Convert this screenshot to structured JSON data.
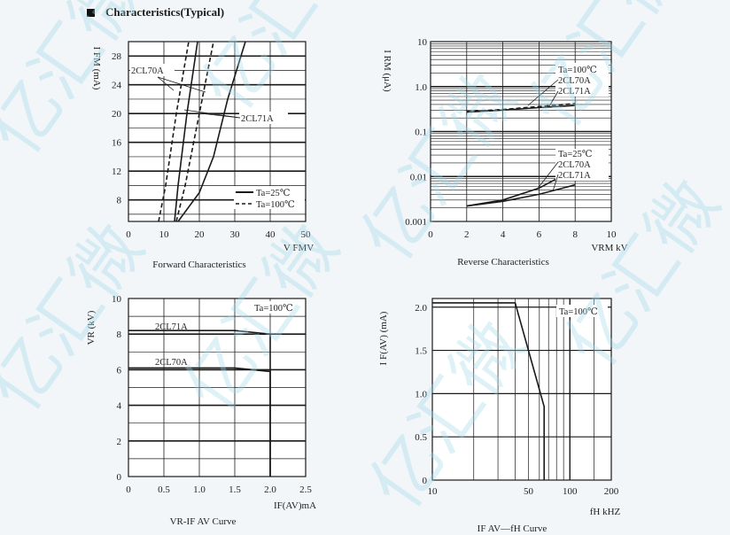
{
  "page": {
    "title": "Characteristics(Typical)"
  },
  "watermark": "亿汇微",
  "colors": {
    "grid": "#1a1a1a",
    "curve": "#1a1a1a",
    "watermark": "#9fd8ea"
  },
  "chart_data": [
    {
      "id": "forward",
      "type": "line",
      "caption": "Forward Characteristics",
      "xlabel": "V FMV",
      "ylabel": "I FM (mA)",
      "xlim": [
        0,
        50
      ],
      "ylim": [
        5,
        30
      ],
      "xticks": [
        0,
        10,
        20,
        30,
        40,
        50
      ],
      "yticks": [
        8,
        12,
        16,
        20,
        24,
        28
      ],
      "legend": {
        "solid": "Ta=25℃",
        "dashed": "Ta=100℃",
        "position": "lower-right"
      },
      "annotations": [
        "2CL70A",
        "2CL71A"
      ],
      "series": [
        {
          "style": "dashed",
          "x": [
            8.5,
            10.5,
            13.5,
            17
          ],
          "y": [
            5,
            10,
            20,
            30
          ]
        },
        {
          "style": "solid",
          "x": [
            13,
            14,
            16.5,
            19.5
          ],
          "y": [
            5,
            10,
            20,
            30
          ]
        },
        {
          "style": "dashed",
          "x": [
            13.5,
            16,
            20,
            24
          ],
          "y": [
            5,
            10,
            20,
            30
          ]
        },
        {
          "style": "solid",
          "x": [
            14,
            20,
            24,
            28,
            33
          ],
          "y": [
            5,
            9,
            14,
            22,
            30
          ]
        }
      ]
    },
    {
      "id": "reverse",
      "type": "line",
      "caption": "Reverse Characteristics",
      "xlabel": "VRM kV",
      "ylabel": "I RM (μA)",
      "xlim": [
        0,
        10
      ],
      "ylim": [
        0.001,
        10
      ],
      "yscale": "log",
      "xticks": [
        0,
        2,
        4,
        6,
        8,
        10
      ],
      "yticks": [
        "0.001",
        "0.01",
        "0.1",
        "1.0",
        "10"
      ],
      "annotations": [
        "Ta=100℃",
        "2CL70A",
        "2CL71A",
        "Ta=25℃",
        "2CL70A",
        "2CL71A"
      ],
      "series": [
        {
          "style": "dashed",
          "x": [
            2,
            4,
            6,
            8
          ],
          "y": [
            0.28,
            0.31,
            0.36,
            0.42
          ]
        },
        {
          "style": "solid",
          "x": [
            2,
            4,
            6,
            8
          ],
          "y": [
            0.27,
            0.3,
            0.34,
            0.38
          ]
        },
        {
          "style": "solid",
          "x": [
            2,
            4,
            6,
            7,
            8
          ],
          "y": [
            0.0022,
            0.003,
            0.0055,
            0.009,
            0.014
          ]
        },
        {
          "style": "solid",
          "x": [
            2,
            4,
            6,
            8
          ],
          "y": [
            0.0022,
            0.0028,
            0.004,
            0.0065
          ]
        }
      ]
    },
    {
      "id": "vr-if",
      "type": "line",
      "caption": "VR-IF AV Curve",
      "xlabel": "IF(AV)mA",
      "ylabel": "VR (kV)",
      "xlim": [
        0,
        2.5
      ],
      "ylim": [
        0,
        10
      ],
      "xticks": [
        "0",
        "0.5",
        "1.0",
        "1.5",
        "2.0",
        "2.5"
      ],
      "yticks": [
        0,
        2,
        4,
        6,
        8,
        10
      ],
      "annotations": [
        "Ta=100℃",
        "2CL71A",
        "2CL70A"
      ],
      "series": [
        {
          "name": "2CL71A",
          "style": "solid",
          "x": [
            0,
            1.5,
            2.0,
            2.0
          ],
          "y": [
            8.2,
            8.2,
            8.0,
            0
          ]
        },
        {
          "name": "2CL70A",
          "style": "solid",
          "x": [
            0,
            1.5,
            2.0,
            2.0
          ],
          "y": [
            6.1,
            6.1,
            5.9,
            0
          ]
        }
      ]
    },
    {
      "id": "if-f",
      "type": "line",
      "caption": "IF AV—fH Curve",
      "xlabel": "fH kHZ",
      "ylabel": "I F(AV) (mA)",
      "xlim": [
        10,
        200
      ],
      "ylim": [
        0,
        2.1
      ],
      "xscale": "log",
      "xticks": [
        "10",
        "50",
        "100",
        "200"
      ],
      "yticks": [
        "0",
        "0.5",
        "1.0",
        "1.5",
        "2.0"
      ],
      "annotations": [
        "Ta=100℃"
      ],
      "series": [
        {
          "style": "solid",
          "x": [
            10,
            40,
            65,
            65
          ],
          "y": [
            2.05,
            2.05,
            0.85,
            0
          ]
        }
      ]
    }
  ]
}
